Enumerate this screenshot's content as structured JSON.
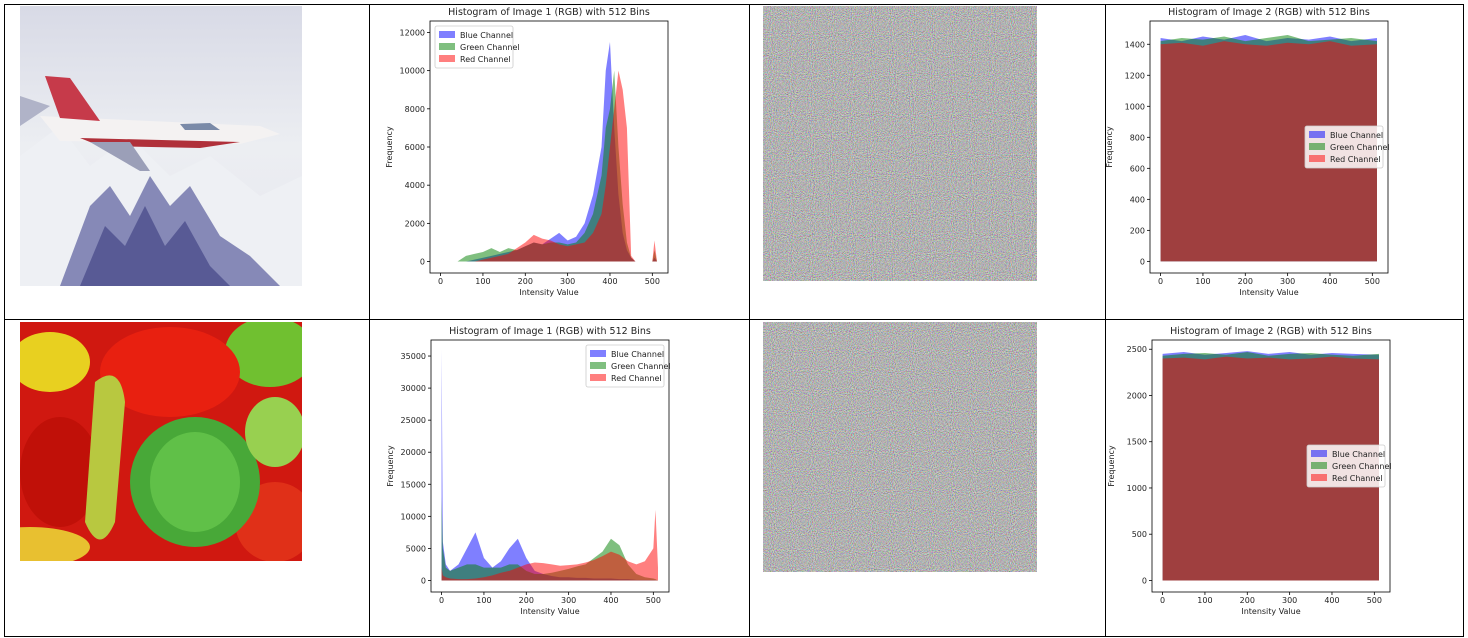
{
  "chart_data": [
    {
      "type": "area",
      "title": "Histogram of Image 1 (RGB) with 512 Bins",
      "x_label": "Intensity Value",
      "y_label": "Frequency",
      "x": [
        0,
        40,
        60,
        80,
        100,
        120,
        140,
        160,
        180,
        200,
        220,
        240,
        260,
        280,
        300,
        320,
        340,
        360,
        380,
        390,
        400,
        410,
        420,
        430,
        440,
        450,
        460,
        500,
        505,
        511
      ],
      "series": [
        {
          "name": "Blue Channel",
          "color": "#0000ff",
          "values": [
            0,
            0,
            0,
            100,
            200,
            300,
            400,
            500,
            600,
            800,
            1000,
            900,
            1200,
            1500,
            1100,
            1300,
            2000,
            3500,
            6000,
            10000,
            11500,
            7000,
            3500,
            1500,
            600,
            200,
            0,
            0,
            200,
            0
          ]
        },
        {
          "name": "Green Channel",
          "color": "#008000",
          "values": [
            0,
            0,
            300,
            400,
            500,
            700,
            500,
            700,
            600,
            800,
            1000,
            900,
            1000,
            1000,
            900,
            1000,
            1500,
            2500,
            4500,
            7000,
            8000,
            10000,
            6000,
            3000,
            1000,
            200,
            0,
            0,
            600,
            0
          ]
        },
        {
          "name": "Red Channel",
          "color": "#ff0000",
          "values": [
            0,
            0,
            0,
            0,
            100,
            200,
            300,
            400,
            700,
            1000,
            1400,
            1200,
            1100,
            900,
            800,
            900,
            1000,
            1500,
            2500,
            4000,
            6000,
            8000,
            10000,
            9000,
            7000,
            300,
            0,
            0,
            1100,
            0
          ]
        }
      ],
      "xlim": [
        -25,
        537
      ],
      "xticks": [
        0,
        100,
        200,
        300,
        400,
        500
      ],
      "ylim": [
        -600,
        12600
      ],
      "yticks": [
        0,
        2000,
        4000,
        6000,
        8000,
        10000,
        12000
      ],
      "legend": "upper left"
    },
    {
      "type": "area",
      "title": "Histogram of Image 2 (RGB) with 512 Bins",
      "x_label": "Intensity Value",
      "y_label": "Frequency",
      "x": [
        0,
        50,
        100,
        150,
        200,
        250,
        300,
        350,
        400,
        450,
        511
      ],
      "series": [
        {
          "name": "Blue Channel",
          "color": "#0000ff",
          "values": [
            1440,
            1420,
            1450,
            1430,
            1460,
            1420,
            1440,
            1430,
            1450,
            1420,
            1440
          ]
        },
        {
          "name": "Green Channel",
          "color": "#008000",
          "values": [
            1420,
            1440,
            1430,
            1450,
            1420,
            1440,
            1460,
            1420,
            1430,
            1440,
            1420
          ]
        },
        {
          "name": "Red Channel",
          "color": "#ff0000",
          "values": [
            1400,
            1410,
            1390,
            1420,
            1400,
            1390,
            1410,
            1400,
            1420,
            1390,
            1400
          ]
        }
      ],
      "xlim": [
        -25,
        537
      ],
      "xticks": [
        0,
        100,
        200,
        300,
        400,
        500
      ],
      "ylim": [
        -75,
        1550
      ],
      "yticks": [
        0,
        200,
        400,
        600,
        800,
        1000,
        1200,
        1400
      ],
      "legend": "center right"
    },
    {
      "type": "area",
      "title": "Histogram of Image 1 (RGB) with 512 Bins",
      "x_label": "Intensity Value",
      "y_label": "Frequency",
      "x": [
        0,
        3,
        10,
        20,
        40,
        60,
        80,
        100,
        120,
        140,
        160,
        180,
        200,
        220,
        240,
        260,
        280,
        300,
        320,
        340,
        360,
        380,
        400,
        420,
        440,
        460,
        480,
        500,
        505,
        511
      ],
      "series": [
        {
          "name": "Blue Channel",
          "color": "#0000ff",
          "values": [
            36000,
            6000,
            2500,
            1500,
            2500,
            5000,
            7500,
            3500,
            2000,
            3000,
            5000,
            6500,
            3500,
            1500,
            1000,
            700,
            500,
            500,
            400,
            400,
            300,
            300,
            300,
            200,
            200,
            100,
            100,
            100,
            50,
            0
          ]
        },
        {
          "name": "Green Channel",
          "color": "#008000",
          "values": [
            13000,
            5000,
            2000,
            1500,
            2000,
            2500,
            2500,
            2000,
            2000,
            2000,
            2500,
            2500,
            1500,
            1000,
            1000,
            1200,
            1500,
            1800,
            2200,
            2500,
            3500,
            4500,
            6500,
            5500,
            2500,
            1000,
            500,
            300,
            200,
            0
          ]
        },
        {
          "name": "Red Channel",
          "color": "#ff0000",
          "values": [
            2000,
            800,
            500,
            300,
            200,
            200,
            300,
            500,
            800,
            1200,
            1500,
            2000,
            2500,
            2800,
            2700,
            2500,
            2300,
            2400,
            2500,
            2800,
            3200,
            3800,
            4500,
            4000,
            3000,
            2500,
            3000,
            5000,
            11000,
            2000
          ]
        }
      ],
      "xlim": [
        -25,
        537
      ],
      "xticks": [
        0,
        100,
        200,
        300,
        400,
        500
      ],
      "ylim": [
        -1800,
        37500
      ],
      "yticks": [
        0,
        5000,
        10000,
        15000,
        20000,
        25000,
        30000,
        35000
      ],
      "legend": "upper right"
    },
    {
      "type": "area",
      "title": "Histogram of Image 2 (RGB) with 512 Bins",
      "x_label": "Intensity Value",
      "y_label": "Frequency",
      "x": [
        0,
        50,
        100,
        150,
        200,
        250,
        300,
        350,
        400,
        450,
        511
      ],
      "series": [
        {
          "name": "Blue Channel",
          "color": "#0000ff",
          "values": [
            2450,
            2470,
            2440,
            2460,
            2480,
            2450,
            2470,
            2440,
            2460,
            2450,
            2440
          ]
        },
        {
          "name": "Green Channel",
          "color": "#008000",
          "values": [
            2430,
            2450,
            2460,
            2440,
            2470,
            2430,
            2450,
            2460,
            2440,
            2430,
            2450
          ]
        },
        {
          "name": "Red Channel",
          "color": "#ff0000",
          "values": [
            2400,
            2410,
            2390,
            2420,
            2400,
            2410,
            2390,
            2400,
            2420,
            2400,
            2390
          ]
        }
      ],
      "xlim": [
        -25,
        537
      ],
      "xticks": [
        0,
        100,
        200,
        300,
        400,
        500
      ],
      "ylim": [
        -125,
        2600
      ],
      "yticks": [
        0,
        500,
        1000,
        1500,
        2000,
        2500
      ],
      "legend": "center right"
    }
  ]
}
